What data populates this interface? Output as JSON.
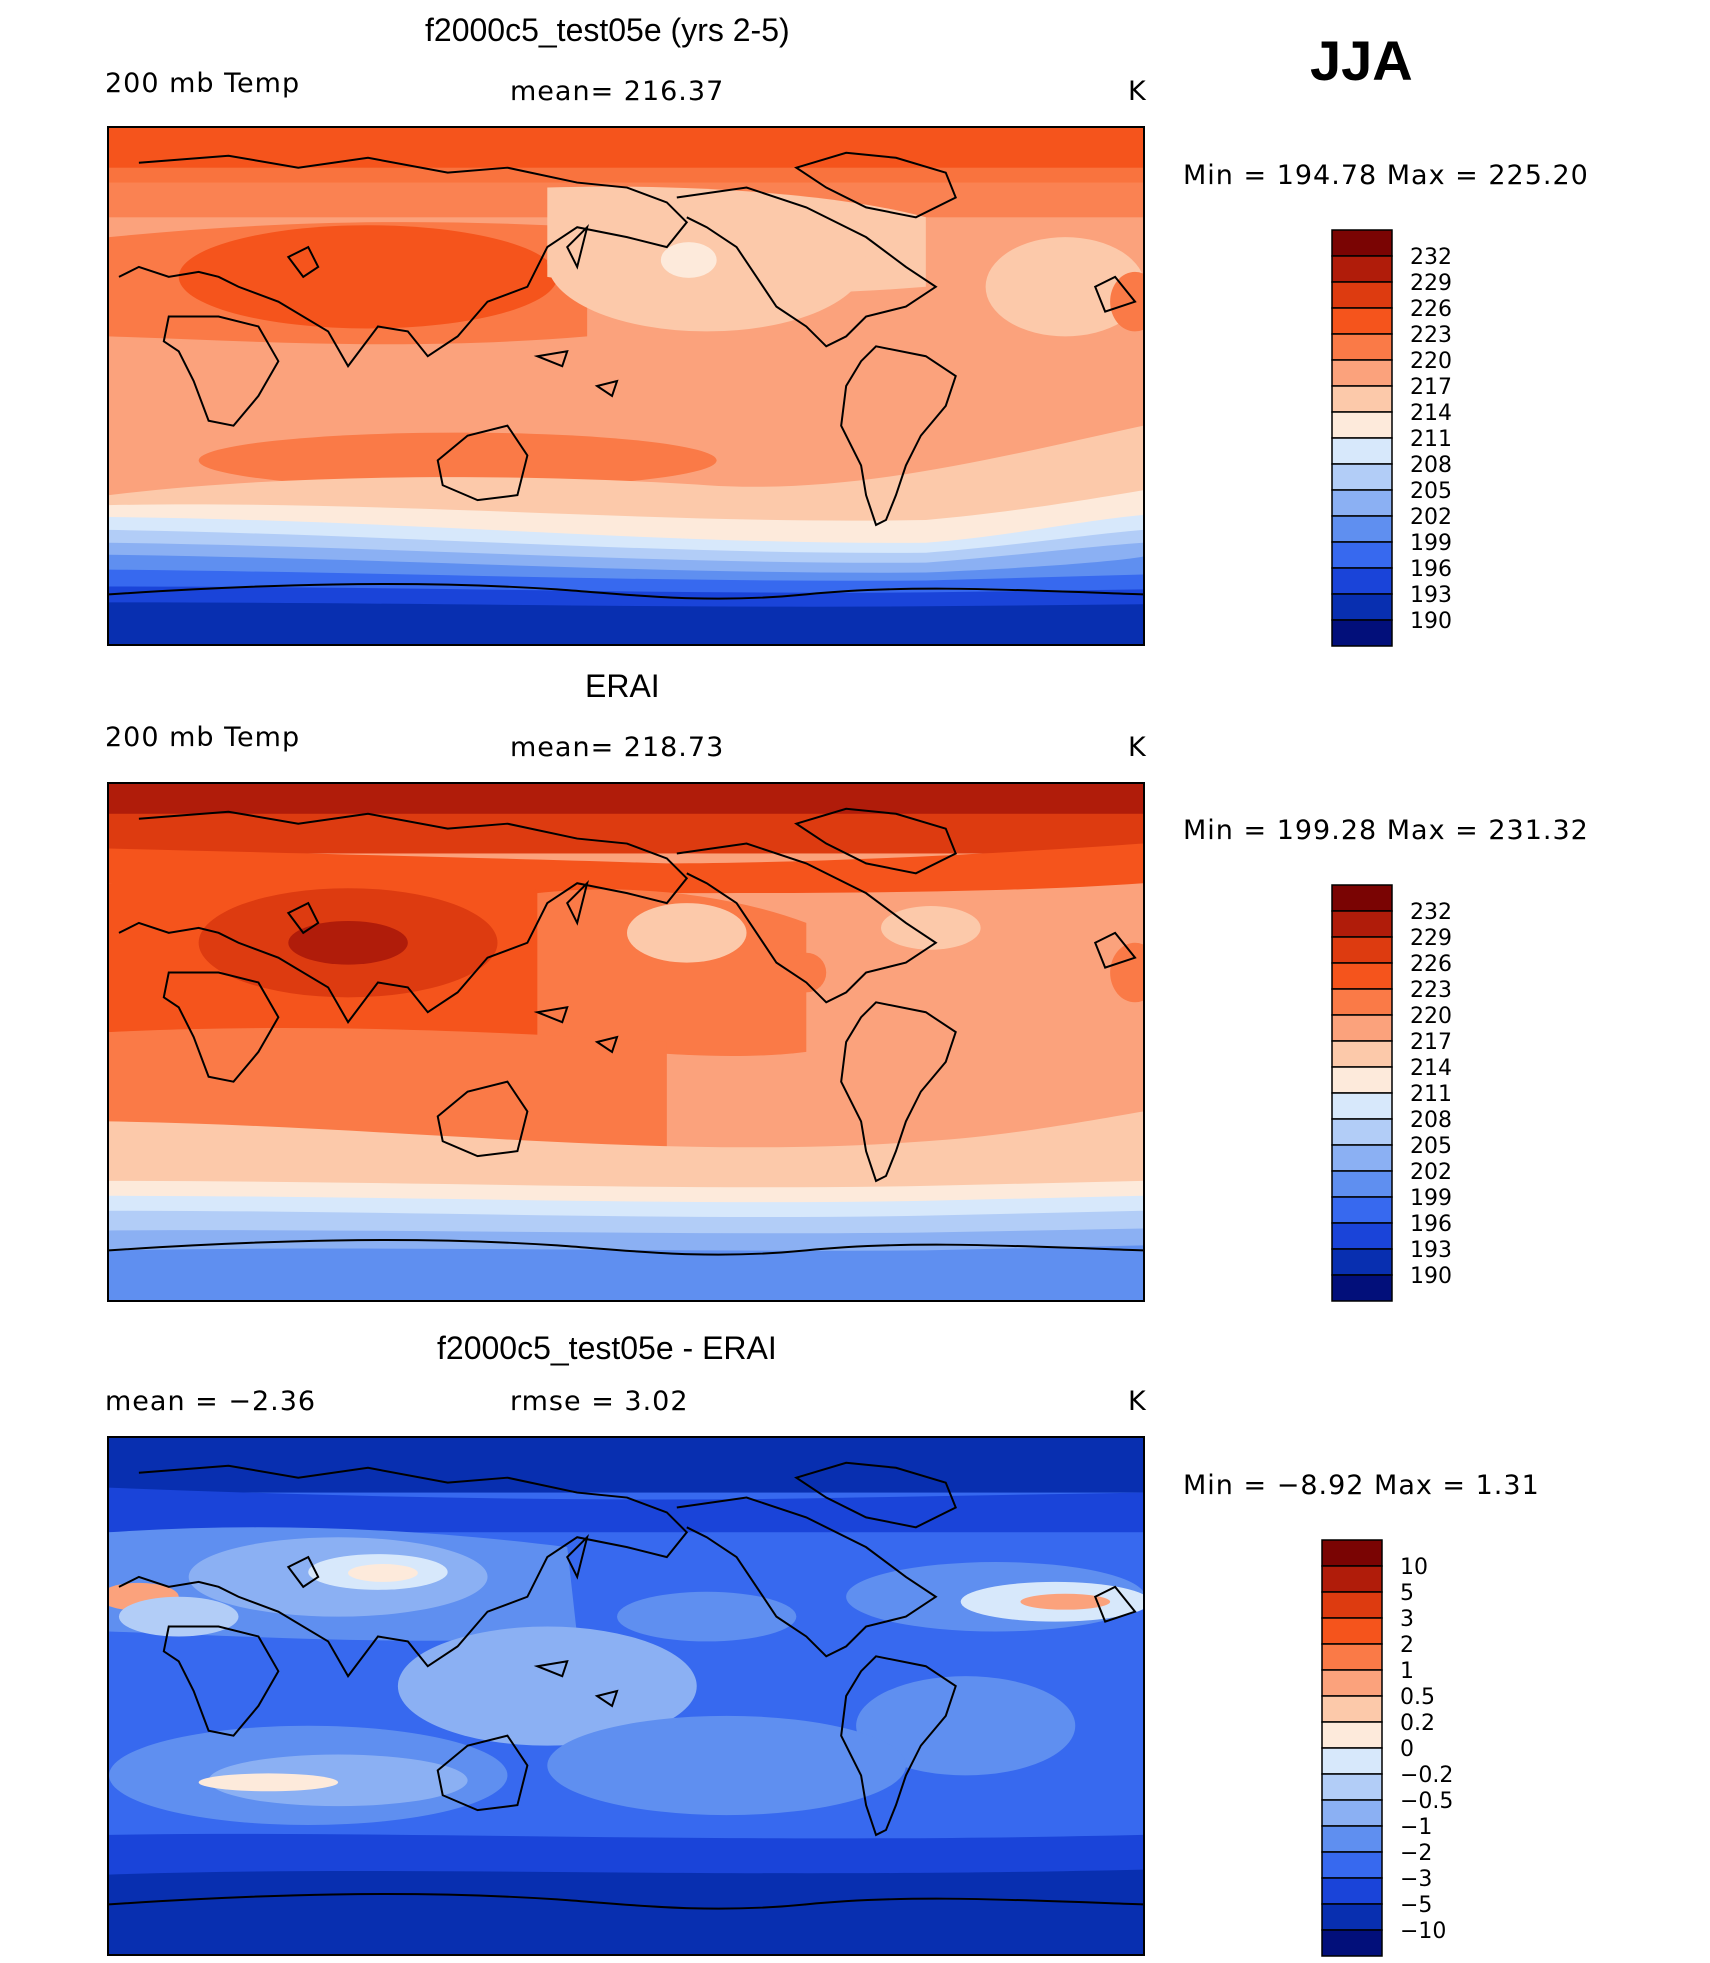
{
  "figure": {
    "season": "JJA",
    "variable": "200 mb Temp",
    "units": "K"
  },
  "panels": [
    {
      "id": "model",
      "title": "f2000c5_test05e (yrs 2-5)",
      "left_label": "200 mb Temp",
      "center_label": "mean= 216.37",
      "right_label": "K",
      "minmax": "Min  =  194.78  Max  =  225.20",
      "colorbar_labels": [
        "232",
        "229",
        "226",
        "223",
        "220",
        "217",
        "214",
        "211",
        "208",
        "205",
        "202",
        "199",
        "196",
        "193",
        "190"
      ]
    },
    {
      "id": "obs",
      "title": "ERAI",
      "left_label": "200 mb Temp",
      "center_label": "mean= 218.73",
      "right_label": "K",
      "minmax": "Min  =  199.28  Max  =  231.32",
      "colorbar_labels": [
        "232",
        "229",
        "226",
        "223",
        "220",
        "217",
        "214",
        "211",
        "208",
        "205",
        "202",
        "199",
        "196",
        "193",
        "190"
      ]
    },
    {
      "id": "diff",
      "title": "f2000c5_test05e - ERAI",
      "left_label": "mean  =    −2.36",
      "center_label": "rmse  =     3.02",
      "right_label": "K",
      "minmax": "Min  =    −8.92  Max  =      1.31",
      "colorbar_labels": [
        "10",
        "5",
        "3",
        "2",
        "1",
        "0.5",
        "0.2",
        "0",
        "−0.2",
        "−0.5",
        "−1",
        "−2",
        "−3",
        "−5",
        "−10"
      ]
    }
  ],
  "palette": {
    "temp_colors": [
      "#7a0403",
      "#b01c0a",
      "#dd3b10",
      "#f5541c",
      "#fa7a47",
      "#fba27c",
      "#fcc9aa",
      "#fdeadb",
      "#d7e8fb",
      "#b2cdf7",
      "#8bb0f3",
      "#5f8ff0",
      "#3769ef",
      "#1a44d9",
      "#082fb0",
      "#020f7a"
    ],
    "diff_colors": [
      "#7a0403",
      "#b01c0a",
      "#dd3b10",
      "#f5541c",
      "#fa7a47",
      "#fba27c",
      "#fcc9aa",
      "#fdeadb",
      "#d7e8fb",
      "#b2cdf7",
      "#8bb0f3",
      "#5f8ff0",
      "#3769ef",
      "#1a44d9",
      "#082fb0",
      "#020f7a"
    ]
  }
}
